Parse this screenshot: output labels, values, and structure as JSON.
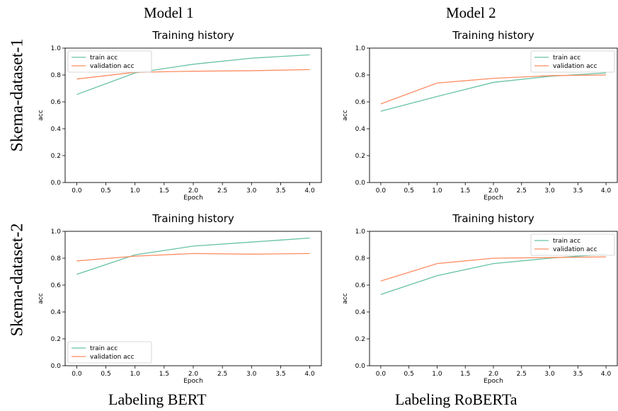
{
  "figure": {
    "columns": [
      "Model 1",
      "Model 2"
    ],
    "rows": [
      "Skema-dataset-1",
      "Skema-dataset-2"
    ],
    "footers": [
      "Labeling BERT",
      "Labeling RoBERTa"
    ]
  },
  "colors": {
    "train": "#66c2a5",
    "validation": "#fc8d62"
  },
  "chart_data": [
    {
      "type": "line",
      "title": "Training history",
      "xlabel": "Epoch",
      "ylabel": "acc",
      "x": [
        0,
        1,
        2,
        3,
        4
      ],
      "xlim": [
        -0.2,
        4.2
      ],
      "ylim": [
        0.0,
        1.0
      ],
      "xticks": [
        "0.0",
        "0.5",
        "1.0",
        "1.5",
        "2.0",
        "2.5",
        "3.0",
        "3.5",
        "4.0"
      ],
      "yticks": [
        "0.0",
        "0.2",
        "0.4",
        "0.6",
        "0.8",
        "1.0"
      ],
      "legend": "upper-left",
      "series": [
        {
          "name": "train acc",
          "values": [
            0.655,
            0.815,
            0.88,
            0.925,
            0.95
          ]
        },
        {
          "name": "validation acc",
          "values": [
            0.77,
            0.82,
            0.828,
            0.832,
            0.84
          ]
        }
      ]
    },
    {
      "type": "line",
      "title": "Training history",
      "xlabel": "Epoch",
      "ylabel": "acc",
      "x": [
        0,
        1,
        2,
        3,
        4
      ],
      "xlim": [
        -0.2,
        4.2
      ],
      "ylim": [
        0.0,
        1.0
      ],
      "xticks": [
        "0.0",
        "0.5",
        "1.0",
        "1.5",
        "2.0",
        "2.5",
        "3.0",
        "3.5",
        "4.0"
      ],
      "yticks": [
        "0.0",
        "0.2",
        "0.4",
        "0.6",
        "0.8",
        "1.0"
      ],
      "legend": "upper-right",
      "series": [
        {
          "name": "train acc",
          "values": [
            0.53,
            0.64,
            0.745,
            0.79,
            0.815
          ]
        },
        {
          "name": "validation acc",
          "values": [
            0.585,
            0.74,
            0.775,
            0.795,
            0.8
          ]
        }
      ]
    },
    {
      "type": "line",
      "title": "Training history",
      "xlabel": "Epoch",
      "ylabel": "acc",
      "x": [
        0,
        1,
        2,
        3,
        4
      ],
      "xlim": [
        -0.2,
        4.2
      ],
      "ylim": [
        0.0,
        1.0
      ],
      "xticks": [
        "0.0",
        "0.5",
        "1.0",
        "1.5",
        "2.0",
        "2.5",
        "3.0",
        "3.5",
        "4.0"
      ],
      "yticks": [
        "0.0",
        "0.2",
        "0.4",
        "0.6",
        "0.8",
        "1.0"
      ],
      "legend": "lower-left",
      "series": [
        {
          "name": "train acc",
          "values": [
            0.68,
            0.825,
            0.89,
            0.92,
            0.95
          ]
        },
        {
          "name": "validation acc",
          "values": [
            0.78,
            0.815,
            0.835,
            0.83,
            0.835
          ]
        }
      ]
    },
    {
      "type": "line",
      "title": "Training history",
      "xlabel": "Epoch",
      "ylabel": "acc",
      "x": [
        0,
        1,
        2,
        3,
        4
      ],
      "xlim": [
        -0.2,
        4.2
      ],
      "ylim": [
        0.0,
        1.0
      ],
      "xticks": [
        "0.0",
        "0.5",
        "1.0",
        "1.5",
        "2.0",
        "2.5",
        "3.0",
        "3.5",
        "4.0"
      ],
      "yticks": [
        "0.0",
        "0.2",
        "0.4",
        "0.6",
        "0.8",
        "1.0"
      ],
      "legend": "upper-right",
      "series": [
        {
          "name": "train acc",
          "values": [
            0.53,
            0.67,
            0.76,
            0.8,
            0.83
          ]
        },
        {
          "name": "validation acc",
          "values": [
            0.63,
            0.76,
            0.8,
            0.805,
            0.81
          ]
        }
      ]
    }
  ]
}
